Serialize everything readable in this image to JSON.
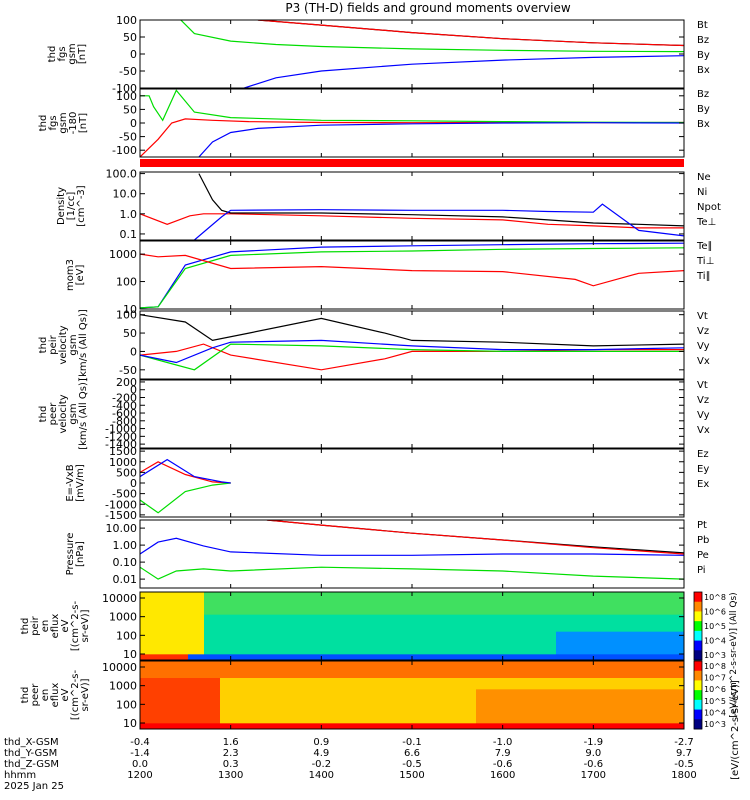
{
  "title": "P3 (TH-D) fields and ground moments overview",
  "colors": {
    "black": "#000000",
    "red": "#ff0000",
    "green": "#00dd00",
    "blue": "#0000ff"
  },
  "chart_data": {
    "type": "line",
    "xlim": [
      1200,
      1800
    ],
    "panels": [
      {
        "ylabel": [
          "thd",
          "fgs",
          "gsm",
          "[nT]"
        ],
        "yticks": [
          "100",
          "50",
          "0",
          "-50",
          "-100"
        ],
        "ylim": [
          -100,
          100
        ],
        "scale": "linear",
        "legend": [
          "Bt",
          "Bz",
          "By",
          "Bx"
        ],
        "legend_colors": [
          "black",
          "red",
          "green",
          "blue"
        ],
        "series": [
          {
            "name": "Bt",
            "color": "black",
            "x": [
              1330,
              1400,
              1500,
              1600,
              1700,
              1800
            ],
            "y": [
              100,
              85,
              63,
              45,
              33,
              25
            ]
          },
          {
            "name": "Bz",
            "color": "red",
            "x": [
              1330,
              1400,
              1500,
              1600,
              1700,
              1800
            ],
            "y": [
              100,
              85,
              63,
              45,
              33,
              25
            ]
          },
          {
            "name": "By",
            "color": "green",
            "x": [
              1245,
              1260,
              1300,
              1350,
              1400,
              1500,
              1600,
              1700,
              1800
            ],
            "y": [
              100,
              60,
              38,
              28,
              22,
              15,
              11,
              8,
              7
            ]
          },
          {
            "name": "Bx",
            "color": "blue",
            "x": [
              1315,
              1350,
              1400,
              1500,
              1600,
              1700,
              1800
            ],
            "y": [
              -100,
              -70,
              -50,
              -30,
              -18,
              -10,
              -5
            ]
          }
        ]
      },
      {
        "ylabel": [
          "thd",
          "fgs",
          "gsm",
          "-180",
          "[nT]"
        ],
        "yticks": [
          "100",
          "50",
          "0",
          "-50",
          "-100"
        ],
        "ylim": [
          -125,
          125
        ],
        "scale": "linear",
        "legend": [
          "Bz",
          "By",
          "Bx"
        ],
        "legend_colors": [
          "red",
          "green",
          "blue"
        ],
        "series": [
          {
            "name": "Bz",
            "color": "red",
            "x": [
              1200,
              1220,
              1235,
              1250,
              1280,
              1320,
              1400,
              1500,
              1600,
              1700,
              1800
            ],
            "y": [
              -125,
              -60,
              0,
              15,
              10,
              5,
              2,
              1,
              2,
              1,
              2
            ]
          },
          {
            "name": "By",
            "color": "green",
            "x": [
              1200,
              1210,
              1215,
              1225,
              1240,
              1260,
              1300,
              1400,
              1500,
              1600,
              1700,
              1800
            ],
            "y": [
              100,
              100,
              60,
              10,
              120,
              40,
              20,
              10,
              8,
              5,
              3,
              2
            ]
          },
          {
            "name": "Bx",
            "color": "blue",
            "x": [
              1265,
              1280,
              1300,
              1330,
              1400,
              1500,
              1600,
              1700,
              1800
            ],
            "y": [
              -125,
              -70,
              -35,
              -20,
              -8,
              -3,
              0,
              1,
              0
            ]
          }
        ]
      },
      {
        "ylabel": [
          "Density",
          "[1/cc]",
          "[cm^-3]"
        ],
        "yticks": [
          "100.0",
          "10.0",
          "1.0",
          "0.1"
        ],
        "ylim": [
          0.05,
          120
        ],
        "scale": "log",
        "legend": [
          "Ne",
          "Ni",
          "Npot",
          "Te⊥"
        ],
        "legend_colors": [
          "red",
          "black",
          "blue",
          "red"
        ],
        "series": [
          {
            "name": "Ne",
            "color": "red",
            "x": [
              1200,
              1230,
              1255,
              1270,
              1300,
              1400,
              1500,
              1600,
              1650,
              1700,
              1750,
              1800
            ],
            "y": [
              1.0,
              0.3,
              0.8,
              1.0,
              1.0,
              0.8,
              0.6,
              0.5,
              0.3,
              0.25,
              0.2,
              0.2
            ]
          },
          {
            "name": "Ni",
            "color": "black",
            "x": [
              1265,
              1280,
              1290,
              1300,
              1400,
              1500,
              1600,
              1650,
              1700,
              1750,
              1800
            ],
            "y": [
              100,
              5,
              1.5,
              1.1,
              1.1,
              0.9,
              0.7,
              0.5,
              0.35,
              0.3,
              0.25
            ]
          },
          {
            "name": "Npot",
            "color": "blue",
            "x": [
              1260,
              1290,
              1300,
              1400,
              1500,
              1600,
              1650,
              1700,
              1710,
              1750,
              1800
            ],
            "y": [
              0.05,
              0.7,
              1.5,
              1.6,
              1.5,
              1.5,
              1.3,
              1.2,
              3.0,
              0.15,
              0.08
            ]
          }
        ]
      },
      {
        "ylabel": [
          "mom3",
          "[eV]"
        ],
        "yticks": [
          "1000",
          "100",
          "10"
        ],
        "ylim": [
          10,
          3000
        ],
        "scale": "log",
        "legend": [
          "Te∥",
          "Ti⊥",
          "Ti∥"
        ],
        "legend_colors": [
          "black",
          "red",
          "green"
        ],
        "series": [
          {
            "name": "Te",
            "color": "blue",
            "x": [
              1200,
              1220,
              1250,
              1300,
              1400,
              1500,
              1600,
              1700,
              1800
            ],
            "y": [
              11,
              12,
              400,
              1200,
              1800,
              2000,
              2200,
              2400,
              2500
            ]
          },
          {
            "name": "Ti⊥",
            "color": "green",
            "x": [
              1200,
              1220,
              1250,
              1300,
              1400,
              1500,
              1600,
              1700,
              1800
            ],
            "y": [
              11,
              12,
              300,
              900,
              1200,
              1300,
              1500,
              1600,
              1700
            ]
          },
          {
            "name": "Ti∥",
            "color": "red",
            "x": [
              1200,
              1220,
              1250,
              1300,
              1400,
              1500,
              1600,
              1680,
              1700,
              1750,
              1800
            ],
            "y": [
              1000,
              800,
              900,
              300,
              350,
              250,
              230,
              120,
              70,
              200,
              250
            ]
          }
        ]
      },
      {
        "ylabel": [
          "thd",
          "peir",
          "velocity",
          "gsm",
          "[km/s (All Qs)]"
        ],
        "yticks": [
          "100",
          "50",
          "0",
          "-50"
        ],
        "ylim": [
          -75,
          110
        ],
        "scale": "linear",
        "legend": [
          "Vt",
          "Vz",
          "Vy",
          "Vx"
        ],
        "legend_colors": [
          "black",
          "red",
          "green",
          "blue"
        ],
        "series": [
          {
            "name": "Vt",
            "color": "black",
            "x": [
              1200,
              1250,
              1280,
              1320,
              1400,
              1470,
              1500,
              1600,
              1700,
              1800
            ],
            "y": [
              100,
              80,
              30,
              50,
              90,
              50,
              30,
              25,
              15,
              20
            ]
          },
          {
            "name": "Vz",
            "color": "red",
            "x": [
              1200,
              1240,
              1270,
              1300,
              1400,
              1470,
              1500,
              1600,
              1700,
              1800
            ],
            "y": [
              -10,
              0,
              20,
              -10,
              -50,
              -20,
              0,
              0,
              5,
              5
            ]
          },
          {
            "name": "Vy",
            "color": "green",
            "x": [
              1200,
              1230,
              1260,
              1300,
              1400,
              1500,
              1600,
              1700,
              1800
            ],
            "y": [
              -10,
              -30,
              -50,
              20,
              15,
              5,
              0,
              0,
              0
            ]
          },
          {
            "name": "Vx",
            "color": "blue",
            "x": [
              1200,
              1240,
              1280,
              1300,
              1400,
              1500,
              1600,
              1700,
              1800
            ],
            "y": [
              -10,
              -30,
              10,
              25,
              30,
              15,
              5,
              5,
              10
            ]
          }
        ]
      },
      {
        "ylabel": [
          "thd",
          "peer",
          "velocity",
          "gsm",
          "[km/s (All Qs)]"
        ],
        "yticks": [
          "200",
          "0",
          "-200",
          "-400",
          "-600",
          "-800",
          "-1000",
          "-1200",
          "-1400"
        ],
        "ylim": [
          -1500,
          250
        ],
        "scale": "linear",
        "legend": [
          "Vt",
          "Vz",
          "Vy",
          "Vx"
        ],
        "legend_colors": [
          "black",
          "red",
          "green",
          "blue"
        ],
        "series": []
      },
      {
        "ylabel": [
          "E=-VxB",
          "[mV/m]"
        ],
        "yticks": [
          "1500",
          "1000",
          "500",
          "0",
          "-500",
          "-1000",
          "-1500"
        ],
        "ylim": [
          -1600,
          1600
        ],
        "scale": "linear",
        "legend": [
          "Ez",
          "Ey",
          "Ex"
        ],
        "legend_colors": [
          "red",
          "green",
          "blue"
        ],
        "series": [
          {
            "name": "Ez",
            "color": "red",
            "x": [
              1200,
              1220,
              1250,
              1280,
              1300
            ],
            "y": [
              500,
              1000,
              400,
              50,
              0
            ]
          },
          {
            "name": "Ey",
            "color": "green",
            "x": [
              1200,
              1220,
              1250,
              1280,
              1300
            ],
            "y": [
              -800,
              -1400,
              -400,
              -100,
              0
            ]
          },
          {
            "name": "Ex",
            "color": "blue",
            "x": [
              1200,
              1230,
              1260,
              1290,
              1300
            ],
            "y": [
              300,
              1100,
              300,
              50,
              0
            ]
          }
        ]
      },
      {
        "ylabel": [
          "Pressure",
          "[nPa]"
        ],
        "yticks": [
          "10.00",
          "1.00",
          "0.10",
          "0.01"
        ],
        "ylim": [
          0.003,
          30
        ],
        "scale": "log",
        "legend": [
          "Pt",
          "Pb",
          "Pe",
          "Pi"
        ],
        "legend_colors": [
          "black",
          "red",
          "green",
          "blue"
        ],
        "series": [
          {
            "name": "Pt",
            "color": "black",
            "x": [
              1340,
              1400,
              1500,
              1600,
              1700,
              1800
            ],
            "y": [
              30,
              15,
              5,
              2,
              0.8,
              0.35
            ]
          },
          {
            "name": "Pb",
            "color": "red",
            "x": [
              1340,
              1400,
              1500,
              1600,
              1700,
              1800
            ],
            "y": [
              30,
              15,
              5,
              2,
              0.7,
              0.3
            ]
          },
          {
            "name": "Pi",
            "color": "blue",
            "x": [
              1200,
              1220,
              1240,
              1270,
              1300,
              1400,
              1500,
              1600,
              1700,
              1800
            ],
            "y": [
              0.3,
              1.5,
              2.5,
              0.9,
              0.4,
              0.25,
              0.25,
              0.3,
              0.3,
              0.25
            ]
          },
          {
            "name": "Pe",
            "color": "green",
            "x": [
              1200,
              1220,
              1240,
              1270,
              1300,
              1400,
              1500,
              1600,
              1700,
              1800
            ],
            "y": [
              0.05,
              0.01,
              0.03,
              0.04,
              0.03,
              0.05,
              0.04,
              0.03,
              0.015,
              0.01
            ]
          }
        ]
      },
      {
        "ylabel": [
          "thd",
          "peir",
          "en",
          "eflux",
          "eV",
          "[(cm^2-s-",
          "sr-eV)]"
        ],
        "yticks": [
          "10000",
          "1000",
          "100",
          "10"
        ],
        "scale": "log",
        "type": "heatmap",
        "colorbar": "ions"
      },
      {
        "ylabel": [
          "thd",
          "peer",
          "en",
          "eflux",
          "eV",
          "[(cm^2-s-",
          "sr-eV)]"
        ],
        "yticks": [
          "10000",
          "1000",
          "100",
          "10"
        ],
        "scale": "log",
        "type": "heatmap",
        "colorbar": "electrons"
      }
    ],
    "colorbars": {
      "ions": {
        "ticks": [
          "10^8",
          "10^6",
          "10^5",
          "10^4",
          "10^3"
        ],
        "label": "[eV/(cm^2-s-sr-eV)] (All Qs)"
      },
      "electrons": {
        "ticks": [
          "10^8",
          "10^7",
          "10^6",
          "10^5",
          "10^4",
          "10^3"
        ]
      },
      "unit": "[eV/(cm^2-s-sr-eV)]"
    },
    "xaxis": {
      "rows": [
        "thd_X-GSM",
        "thd_Y-GSM",
        "thd_Z-GSM",
        "hhmm",
        "2025 Jan 25"
      ],
      "ticks": [
        {
          "x": 1200,
          "vals": [
            "-0.4",
            "-1.4",
            "0.0",
            "1200"
          ]
        },
        {
          "x": 1300,
          "vals": [
            "1.6",
            "2.3",
            "0.3",
            "1300"
          ]
        },
        {
          "x": 1400,
          "vals": [
            "0.9",
            "4.9",
            "-0.2",
            "1400"
          ]
        },
        {
          "x": 1500,
          "vals": [
            "-0.1",
            "6.6",
            "-0.5",
            "1500"
          ]
        },
        {
          "x": 1600,
          "vals": [
            "-1.0",
            "7.9",
            "-0.6",
            "1600"
          ]
        },
        {
          "x": 1700,
          "vals": [
            "-1.9",
            "9.0",
            "-0.6",
            "1700"
          ]
        },
        {
          "x": 1800,
          "vals": [
            "-2.7",
            "9.7",
            "-0.5",
            "1800"
          ]
        }
      ]
    }
  }
}
